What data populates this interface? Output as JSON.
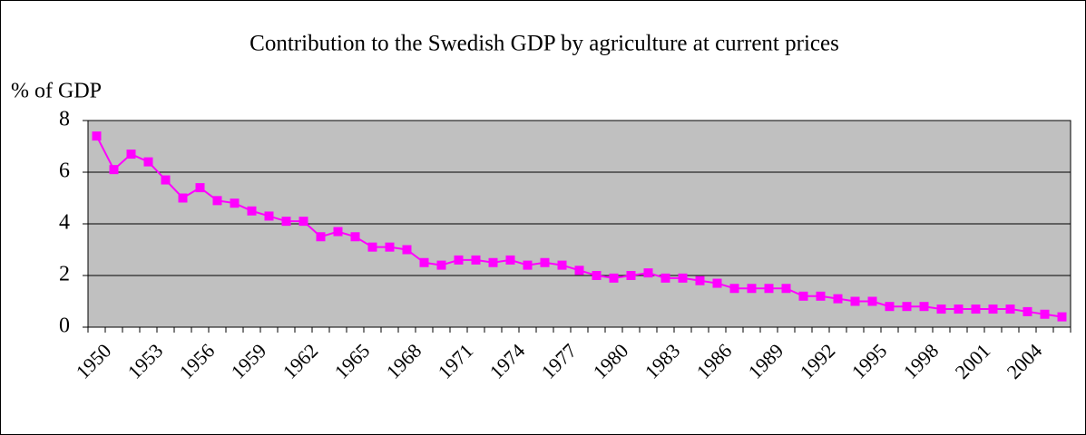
{
  "chart_data": {
    "type": "line",
    "title": "Contribution to the Swedish GDP by agriculture at current prices",
    "y_label": "% of GDP",
    "categories": [
      "1950",
      null,
      null,
      "1953",
      null,
      null,
      "1956",
      null,
      null,
      "1959",
      null,
      null,
      "1962",
      null,
      null,
      "1965",
      null,
      null,
      "1968",
      null,
      null,
      "1971",
      null,
      null,
      "1974",
      null,
      null,
      "1977",
      null,
      null,
      "1980",
      null,
      null,
      "1983",
      null,
      null,
      "1986",
      null,
      null,
      "1989",
      null,
      null,
      "1992",
      null,
      null,
      "1995",
      null,
      null,
      "1998",
      null,
      null,
      "2001",
      null,
      null,
      "2004",
      null,
      null
    ],
    "values": [
      7.4,
      6.1,
      6.7,
      6.4,
      5.7,
      5.0,
      5.4,
      4.9,
      4.8,
      4.5,
      4.3,
      4.1,
      4.1,
      3.5,
      3.7,
      3.5,
      3.1,
      3.1,
      3.0,
      2.5,
      2.4,
      2.6,
      2.6,
      2.5,
      2.6,
      2.4,
      2.5,
      2.4,
      2.2,
      2.0,
      1.9,
      2.0,
      2.1,
      1.9,
      1.9,
      1.8,
      1.7,
      1.5,
      1.5,
      1.5,
      1.5,
      1.2,
      1.2,
      1.1,
      1.0,
      1.0,
      0.8,
      0.8,
      0.8,
      0.7,
      0.7,
      0.7,
      0.7,
      0.7,
      0.6,
      0.5,
      0.4
    ],
    "color": "#ff00ff",
    "ylim": [
      0,
      8
    ],
    "yticks": [
      0,
      2,
      4,
      6,
      8
    ],
    "grid": true
  }
}
